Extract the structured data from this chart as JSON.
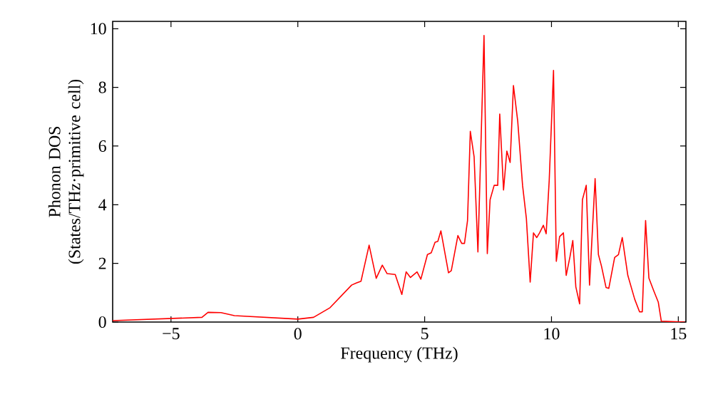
{
  "chart_data": {
    "type": "line",
    "xlabel": "Frequency (THz)",
    "ylabel": "Phonon DOS (States/THz·primitive cell)",
    "xlim": [
      -7.3,
      15.3
    ],
    "ylim": [
      0,
      10.25
    ],
    "xticks": [
      {
        "value": -5,
        "label": "−5"
      },
      0,
      5,
      10,
      15
    ],
    "yticks": [
      0,
      2,
      4,
      6,
      8,
      10
    ],
    "grid": false,
    "marker": "none",
    "line_style": "solid",
    "series": [
      {
        "color": "#ff0000",
        "x": [
          -7.3,
          -3.78,
          -3.54,
          -3.03,
          -2.5,
          0,
          0.62,
          1.27,
          2.12,
          2.3,
          2.49,
          2.81,
          3.09,
          3.33,
          3.52,
          3.84,
          4.1,
          4.27,
          4.44,
          4.7,
          4.85,
          5.11,
          5.26,
          5.41,
          5.52,
          5.64,
          5.94,
          6.05,
          6.31,
          6.46,
          6.57,
          6.69,
          6.8,
          6.95,
          7.1,
          7.34,
          7.47,
          7.58,
          7.74,
          7.88,
          7.96,
          8.11,
          8.24,
          8.37,
          8.5,
          8.67,
          8.86,
          9.01,
          9.16,
          9.29,
          9.42,
          9.53,
          9.68,
          9.79,
          9.91,
          10.08,
          10.19,
          10.32,
          10.47,
          10.58,
          10.73,
          10.84,
          10.96,
          11.11,
          11.22,
          11.37,
          11.5,
          11.72,
          11.85,
          11.97,
          12.15,
          12.26,
          12.49,
          12.64,
          12.79,
          13.01,
          13.28,
          13.47,
          13.58,
          13.71,
          13.84,
          14.03,
          14.21,
          14.33,
          15.26
        ],
        "values": [
          0.05,
          0.16,
          0.33,
          0.32,
          0.22,
          0.1,
          0.16,
          0.49,
          1.26,
          1.33,
          1.39,
          2.62,
          1.49,
          1.94,
          1.65,
          1.62,
          0.94,
          1.71,
          1.52,
          1.71,
          1.46,
          2.3,
          2.36,
          2.72,
          2.75,
          3.11,
          1.68,
          1.75,
          2.95,
          2.68,
          2.68,
          3.46,
          6.5,
          5.63,
          2.39,
          9.77,
          2.33,
          4.17,
          4.66,
          4.66,
          7.09,
          4.5,
          5.83,
          5.44,
          8.06,
          6.84,
          4.66,
          3.53,
          1.36,
          3.04,
          2.88,
          3.04,
          3.3,
          3.01,
          4.82,
          8.58,
          2.07,
          2.91,
          3.04,
          1.59,
          2.23,
          2.78,
          1.2,
          0.62,
          4.17,
          4.66,
          1.26,
          4.89,
          2.3,
          1.91,
          1.18,
          1.15,
          2.2,
          2.3,
          2.88,
          1.59,
          0.78,
          0.35,
          0.35,
          3.46,
          1.5,
          1.07,
          0.68,
          0.03,
          0
        ]
      }
    ]
  }
}
